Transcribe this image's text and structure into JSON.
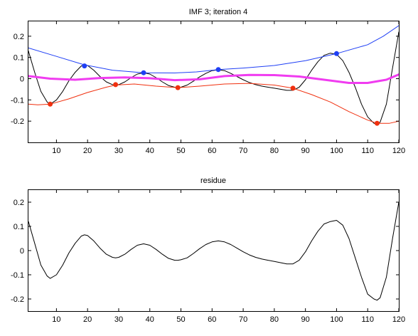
{
  "chart_data": [
    {
      "type": "line",
      "title": "IMF 3;   iteration 4",
      "xlim": [
        1,
        120
      ],
      "ylim": [
        -0.3,
        0.27
      ],
      "xticks": [
        10,
        20,
        30,
        40,
        50,
        60,
        70,
        80,
        90,
        100,
        110,
        120
      ],
      "yticks": [
        -0.2,
        -0.1,
        0,
        0.1,
        0.2
      ],
      "ytick_labels": [
        "-0.2",
        "-0.1",
        "0",
        "0.1",
        "0.2"
      ],
      "grid": false,
      "series": [
        {
          "role": "signal",
          "color": "#000000",
          "width": 1,
          "x": [
            1,
            3,
            5,
            7,
            8,
            10,
            12,
            14,
            16,
            18,
            19,
            20,
            22,
            24,
            26,
            28,
            29,
            30,
            32,
            34,
            36,
            38,
            40,
            42,
            44,
            46,
            48,
            49,
            50,
            52,
            54,
            56,
            58,
            60,
            62,
            64,
            66,
            68,
            70,
            72,
            74,
            76,
            78,
            80,
            82,
            84,
            86,
            88,
            90,
            92,
            94,
            96,
            98,
            100,
            102,
            104,
            106,
            108,
            110,
            112,
            113,
            114,
            116,
            118,
            120
          ],
          "y": [
            0.13,
            0.03,
            -0.06,
            -0.11,
            -0.12,
            -0.1,
            -0.06,
            -0.01,
            0.03,
            0.06,
            0.065,
            0.062,
            0.04,
            0.01,
            -0.015,
            -0.028,
            -0.03,
            -0.028,
            -0.015,
            0.005,
            0.022,
            0.028,
            0.022,
            0.005,
            -0.015,
            -0.032,
            -0.04,
            -0.042,
            -0.04,
            -0.03,
            -0.012,
            0.008,
            0.025,
            0.038,
            0.042,
            0.038,
            0.025,
            0.01,
            -0.005,
            -0.018,
            -0.028,
            -0.035,
            -0.04,
            -0.045,
            -0.05,
            -0.055,
            -0.055,
            -0.04,
            -0.005,
            0.04,
            0.08,
            0.11,
            0.12,
            0.115,
            0.085,
            0.03,
            -0.04,
            -0.12,
            -0.18,
            -0.21,
            -0.215,
            -0.205,
            -0.12,
            0.05,
            0.22
          ]
        },
        {
          "role": "upper-envelope",
          "color": "#1f3ff5",
          "width": 1,
          "x": [
            1,
            10,
            19,
            28,
            38,
            48,
            55,
            62,
            70,
            80,
            90,
            100,
            110,
            115,
            120
          ],
          "y": [
            0.145,
            0.105,
            0.065,
            0.04,
            0.028,
            0.027,
            0.032,
            0.043,
            0.05,
            0.062,
            0.085,
            0.118,
            0.16,
            0.2,
            0.25
          ]
        },
        {
          "role": "lower-envelope",
          "color": "#f0300f",
          "width": 1,
          "x": [
            1,
            4,
            8,
            14,
            20,
            26,
            29,
            35,
            42,
            49,
            56,
            64,
            72,
            80,
            86,
            92,
            98,
            104,
            110,
            113,
            117,
            120
          ],
          "y": [
            -0.12,
            -0.123,
            -0.12,
            -0.095,
            -0.065,
            -0.04,
            -0.03,
            -0.025,
            -0.035,
            -0.042,
            -0.035,
            -0.025,
            -0.022,
            -0.03,
            -0.045,
            -0.075,
            -0.11,
            -0.155,
            -0.195,
            -0.21,
            -0.21,
            -0.2
          ]
        },
        {
          "role": "mean-envelope",
          "color": "#f03cf0",
          "width": 3,
          "x": [
            1,
            8,
            16,
            24,
            32,
            40,
            48,
            56,
            64,
            72,
            80,
            88,
            96,
            104,
            110,
            116,
            120
          ],
          "y": [
            0.012,
            0.0,
            -0.005,
            0.003,
            0.006,
            0.002,
            -0.007,
            -0.003,
            0.012,
            0.018,
            0.017,
            0.01,
            -0.005,
            -0.02,
            -0.02,
            -0.005,
            0.02
          ]
        }
      ],
      "maxima": {
        "color": "#1f3ff5",
        "x": [
          19,
          38,
          62,
          100
        ],
        "y": [
          0.06,
          0.028,
          0.043,
          0.118
        ]
      },
      "minima": {
        "color": "#f0300f",
        "x": [
          8,
          29,
          49,
          86,
          113
        ],
        "y": [
          -0.12,
          -0.028,
          -0.042,
          -0.045,
          -0.21
        ]
      }
    },
    {
      "type": "line",
      "title": "residue",
      "xlim": [
        1,
        120
      ],
      "ylim": [
        -0.25,
        0.25
      ],
      "xticks": [
        10,
        20,
        30,
        40,
        50,
        60,
        70,
        80,
        90,
        100,
        110,
        120
      ],
      "yticks": [
        -0.2,
        -0.1,
        0,
        0.1,
        0.2
      ],
      "ytick_labels": [
        "-0.2",
        "-0.1",
        "0",
        "0.1",
        "0.2"
      ],
      "grid": false,
      "series": [
        {
          "role": "residue",
          "color": "#000000",
          "width": 1,
          "x": [
            1,
            3,
            5,
            7,
            8,
            10,
            12,
            14,
            16,
            18,
            19,
            20,
            22,
            24,
            26,
            28,
            29,
            30,
            32,
            34,
            36,
            38,
            40,
            42,
            44,
            46,
            48,
            49,
            50,
            52,
            54,
            56,
            58,
            60,
            62,
            64,
            66,
            68,
            70,
            72,
            74,
            76,
            78,
            80,
            82,
            84,
            86,
            88,
            90,
            92,
            94,
            96,
            98,
            100,
            102,
            104,
            106,
            108,
            110,
            112,
            113,
            114,
            116,
            118,
            120
          ],
          "y": [
            0.12,
            0.03,
            -0.06,
            -0.105,
            -0.115,
            -0.1,
            -0.06,
            -0.01,
            0.03,
            0.06,
            0.065,
            0.062,
            0.04,
            0.01,
            -0.015,
            -0.028,
            -0.03,
            -0.028,
            -0.015,
            0.005,
            0.022,
            0.028,
            0.022,
            0.005,
            -0.015,
            -0.032,
            -0.04,
            -0.04,
            -0.038,
            -0.03,
            -0.012,
            0.008,
            0.025,
            0.036,
            0.04,
            0.036,
            0.025,
            0.01,
            -0.005,
            -0.018,
            -0.028,
            -0.035,
            -0.04,
            -0.045,
            -0.05,
            -0.055,
            -0.055,
            -0.04,
            -0.005,
            0.04,
            0.08,
            0.11,
            0.12,
            0.125,
            0.105,
            0.05,
            -0.03,
            -0.11,
            -0.18,
            -0.2,
            -0.205,
            -0.195,
            -0.11,
            0.05,
            0.2
          ]
        }
      ]
    }
  ]
}
